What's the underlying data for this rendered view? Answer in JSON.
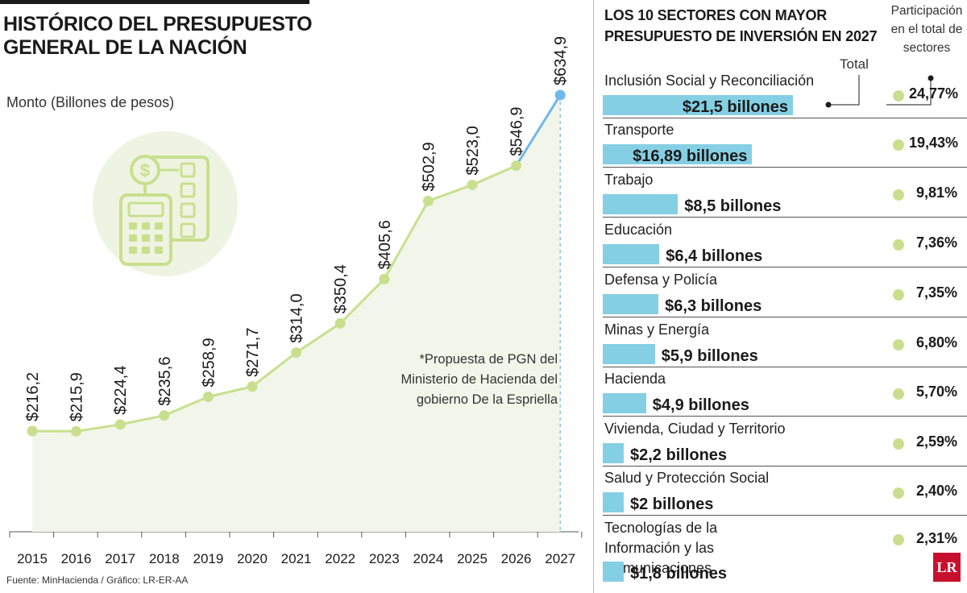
{
  "left": {
    "title_line1": "HISTÓRICO DEL PRESUPUESTO",
    "title_line2": "GENERAL DE LA NACIÓN",
    "unit_label": "Monto (Billones de pesos)",
    "note_lines": [
      "*Propuesta de PGN del",
      "Ministerio de Hacienda del",
      "gobierno De la Espriella"
    ],
    "source": "Fuente: MinHacienda / Gráfico: LR-ER-AA",
    "icon": "calculator-document-icon"
  },
  "right": {
    "title_line1": "LOS 10 SECTORES CON MAYOR",
    "title_line2": "PRESUPUESTO DE INVERSIÓN EN 2027",
    "share_header_lines": [
      "Participación",
      "en el total de",
      "sectores"
    ],
    "total_label": "Total",
    "logo": "LR"
  },
  "colors": {
    "line": "#c9df8e",
    "projection_line": "#6fb8e8",
    "area_fill": "#f2f6ea",
    "bar": "#85cfe4",
    "dot": "#c9df8e",
    "logo": "#c8102e"
  },
  "chart_data": [
    {
      "type": "line",
      "title": "HISTÓRICO DEL PRESUPUESTO GENERAL DE LA NACIÓN",
      "ylabel": "Monto (Billones de pesos)",
      "x": [
        2015,
        2016,
        2017,
        2018,
        2019,
        2020,
        2021,
        2022,
        2023,
        2024,
        2025,
        2026,
        2027
      ],
      "values": [
        216.2,
        215.9,
        224.4,
        235.6,
        258.9,
        271.7,
        314.0,
        350.4,
        405.6,
        502.9,
        523.0,
        546.9,
        634.9
      ],
      "labels": [
        "$216,2",
        "$215,9",
        "$224,4",
        "$235,6",
        "$258,9",
        "$271,7",
        "$314,0",
        "$350,4",
        "$405,6",
        "$502,9",
        "$523,0",
        "$546,9",
        "$634,9"
      ],
      "projected_from_index": 11,
      "projected_year": 2027,
      "ylim": [
        0,
        700
      ],
      "grid": false
    },
    {
      "type": "bar",
      "title": "LOS 10 SECTORES CON MAYOR PRESUPUESTO DE INVERSIÓN EN 2027",
      "categories": [
        "Inclusión Social y Reconciliación",
        "Transporte",
        "Trabajo",
        "Educación",
        "Defensa y Policía",
        "Minas y Energía",
        "Hacienda",
        "Vivienda, Ciudad y Territorio",
        "Salud y Protección Social",
        "Tecnologías de la Información y las Comunicaciones"
      ],
      "values": [
        21.5,
        16.89,
        8.5,
        6.4,
        6.3,
        5.9,
        4.9,
        2.2,
        2.0,
        1.8
      ],
      "value_labels": [
        "$21,5 billones",
        "$16,89 billones",
        "$8,5 billones",
        "$6,4 billones",
        "$6,3 billones",
        "$5,9 billones",
        "$4,9 billones",
        "$2,2 billones",
        "$2 billones",
        "$1,8 billones"
      ],
      "shares": [
        "24,77%",
        "19,43%",
        "9,81%",
        "7,36%",
        "7,35%",
        "6,80%",
        "5,70%",
        "2,59%",
        "2,40%",
        "2,31%"
      ]
    }
  ]
}
